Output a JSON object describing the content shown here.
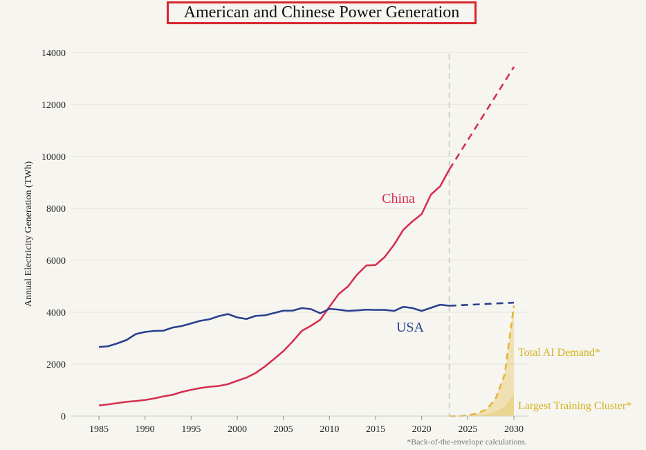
{
  "chart_data": {
    "type": "line",
    "title": "American and Chinese Power Generation",
    "xlabel": "",
    "ylabel": "Annual Electricity Generation (TWh)",
    "xlim": [
      1985,
      2030
    ],
    "ylim": [
      0,
      14000
    ],
    "x_ticks": [
      "1985",
      "1990",
      "1995",
      "2000",
      "2005",
      "2010",
      "2015",
      "2020",
      "2025",
      "2030"
    ],
    "y_ticks": [
      "0",
      "2000",
      "4000",
      "6000",
      "8000",
      "10000",
      "12000",
      "14000"
    ],
    "grid": "horizontal",
    "reference_line_x": 2023,
    "footnote": "*Back-of-the-envelope calculations.",
    "series": [
      {
        "name": "China",
        "color": "#d62f4e",
        "style": "solid",
        "x": [
          1985,
          1986,
          1987,
          1988,
          1989,
          1990,
          1991,
          1992,
          1993,
          1994,
          1995,
          1996,
          1997,
          1998,
          1999,
          2000,
          2001,
          2002,
          2003,
          2004,
          2005,
          2006,
          2007,
          2008,
          2009,
          2010,
          2011,
          2012,
          2013,
          2014,
          2015,
          2016,
          2017,
          2018,
          2019,
          2020,
          2021,
          2022,
          2023
        ],
        "values": [
          410,
          450,
          500,
          550,
          580,
          620,
          680,
          760,
          820,
          930,
          1010,
          1080,
          1130,
          1160,
          1230,
          1360,
          1480,
          1660,
          1910,
          2200,
          2500,
          2870,
          3280,
          3480,
          3710,
          4210,
          4700,
          4990,
          5450,
          5800,
          5820,
          6130,
          6600,
          7170,
          7500,
          7780,
          8530,
          8850,
          9500
        ]
      },
      {
        "name": "China projection",
        "color": "#d62f4e",
        "style": "dashed",
        "x": [
          2023,
          2030
        ],
        "values": [
          9500,
          13450
        ]
      },
      {
        "name": "USA",
        "color": "#2a3f8f",
        "style": "solid",
        "x": [
          1985,
          1986,
          1987,
          1988,
          1989,
          1990,
          1991,
          1992,
          1993,
          1994,
          1995,
          1996,
          1997,
          1998,
          1999,
          2000,
          2001,
          2002,
          2003,
          2004,
          2005,
          2006,
          2007,
          2008,
          2009,
          2010,
          2011,
          2012,
          2013,
          2014,
          2015,
          2016,
          2017,
          2018,
          2019,
          2020,
          2021,
          2022,
          2023
        ],
        "values": [
          2660,
          2690,
          2800,
          2930,
          3160,
          3240,
          3280,
          3290,
          3410,
          3470,
          3570,
          3670,
          3730,
          3850,
          3930,
          3800,
          3740,
          3860,
          3880,
          3970,
          4060,
          4060,
          4160,
          4120,
          3960,
          4130,
          4100,
          4050,
          4070,
          4100,
          4090,
          4090,
          4050,
          4210,
          4160,
          4050,
          4170,
          4290,
          4250
        ]
      },
      {
        "name": "USA projection",
        "color": "#2a3f8f",
        "style": "dashed",
        "x": [
          2023,
          2030
        ],
        "values": [
          4250,
          4370
        ]
      },
      {
        "name": "Total AI Demand*",
        "color": "#e4b634",
        "style": "dashed-area",
        "x": [
          2023,
          2024,
          2025,
          2026,
          2027,
          2028,
          2029,
          2030
        ],
        "values": [
          0,
          0,
          30,
          100,
          250,
          650,
          1600,
          4250
        ]
      },
      {
        "name": "Largest Training Cluster*",
        "color": "#e4b634",
        "style": "area",
        "x": [
          2023,
          2024,
          2025,
          2026,
          2027,
          2028,
          2029,
          2030
        ],
        "values": [
          0,
          0,
          10,
          30,
          70,
          160,
          370,
          850
        ]
      }
    ],
    "annotations": [
      {
        "text": "China",
        "color": "#d62f4e"
      },
      {
        "text": "USA",
        "color": "#2a3f8f"
      },
      {
        "text": "Total AI Demand*",
        "color": "#d2b21c"
      },
      {
        "text": "Largest Training Cluster*",
        "color": "#d2b21c"
      }
    ]
  }
}
